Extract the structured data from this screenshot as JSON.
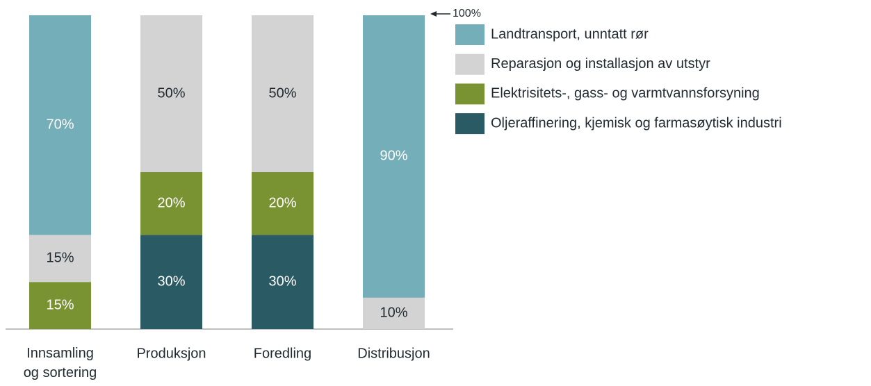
{
  "chart_data": {
    "type": "stacked_bar",
    "categories": [
      "Innsamling og sortering",
      "Produksjon",
      "Foredling",
      "Distribusjon"
    ],
    "series": [
      {
        "name": "Oljeraffinering, kjemisk og farmasøytisk industri",
        "color": "#2a5b64",
        "values": [
          0,
          30,
          30,
          0
        ],
        "value_labels": [
          null,
          "30%",
          "30%",
          null
        ]
      },
      {
        "name": "Elektrisitets-, gass- og varmtvannsforsyning",
        "color": "#7a9332",
        "values": [
          15,
          20,
          20,
          0
        ],
        "value_labels": [
          "15%",
          "20%",
          "20%",
          null
        ]
      },
      {
        "name": "Reparasjon og installasjon av utstyr",
        "color": "#d3d3d3",
        "values": [
          15,
          50,
          50,
          10
        ],
        "value_labels": [
          "15%",
          "50%",
          "50%",
          "10%"
        ]
      },
      {
        "name": "Landtransport, unntatt rør",
        "color": "#74aeb9",
        "values": [
          70,
          0,
          0,
          90
        ],
        "value_labels": [
          "70%",
          null,
          null,
          "90%"
        ]
      }
    ],
    "ylim": [
      0,
      100
    ],
    "annotation": {
      "text": "100%",
      "value": 100
    },
    "legend": "right"
  }
}
